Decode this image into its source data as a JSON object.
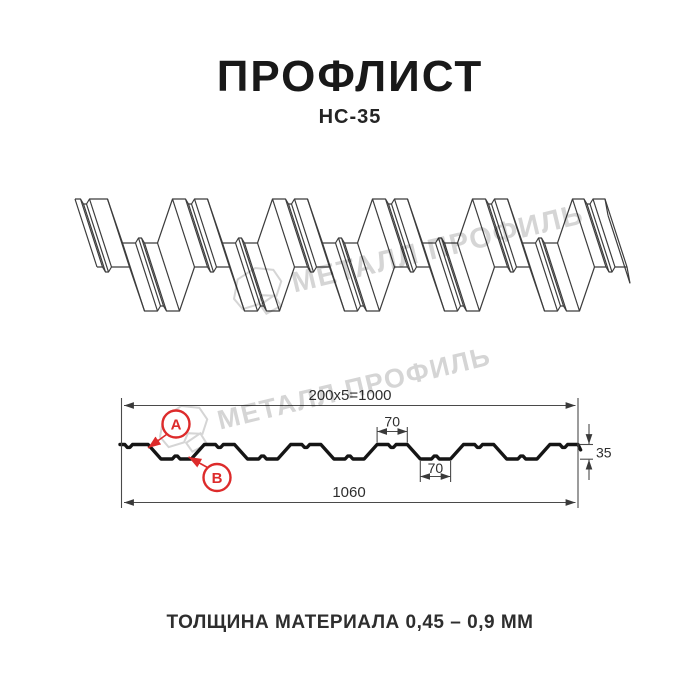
{
  "header": {
    "title": "ПРОФЛИСТ",
    "subtitle": "НС-35"
  },
  "footer": {
    "text": "ТОЛЩИНА МАТЕРИАЛА 0,45 – 0,9 ММ"
  },
  "watermark": {
    "text": "МЕТАЛЛ ПРОФИЛЬ",
    "color": "#d5d5d5"
  },
  "diagram": {
    "type": "profiled-sheet-technical-drawing",
    "dimensions": {
      "top_width": "200x5=1000",
      "rib_top_width": "70",
      "rib_bottom_width": "70",
      "height": "35",
      "total_width": "1060"
    },
    "markers": {
      "a": "A",
      "b": "B",
      "color": "#dd2b2b"
    },
    "colors": {
      "ink": "#151515",
      "dim_lines": "#4a4a4a",
      "watermark": "#d5d5d5"
    },
    "profile_mm": {
      "total_width": 1060,
      "pitch": 200,
      "top_flange": 70,
      "bottom_flange": 70,
      "height": 35,
      "slope_run": 30,
      "periods": 5,
      "left_flat": 65,
      "notch_width": 18,
      "notch_depth": 7,
      "edge_lip_dx": 6,
      "edge_lip_dy": 13
    }
  }
}
